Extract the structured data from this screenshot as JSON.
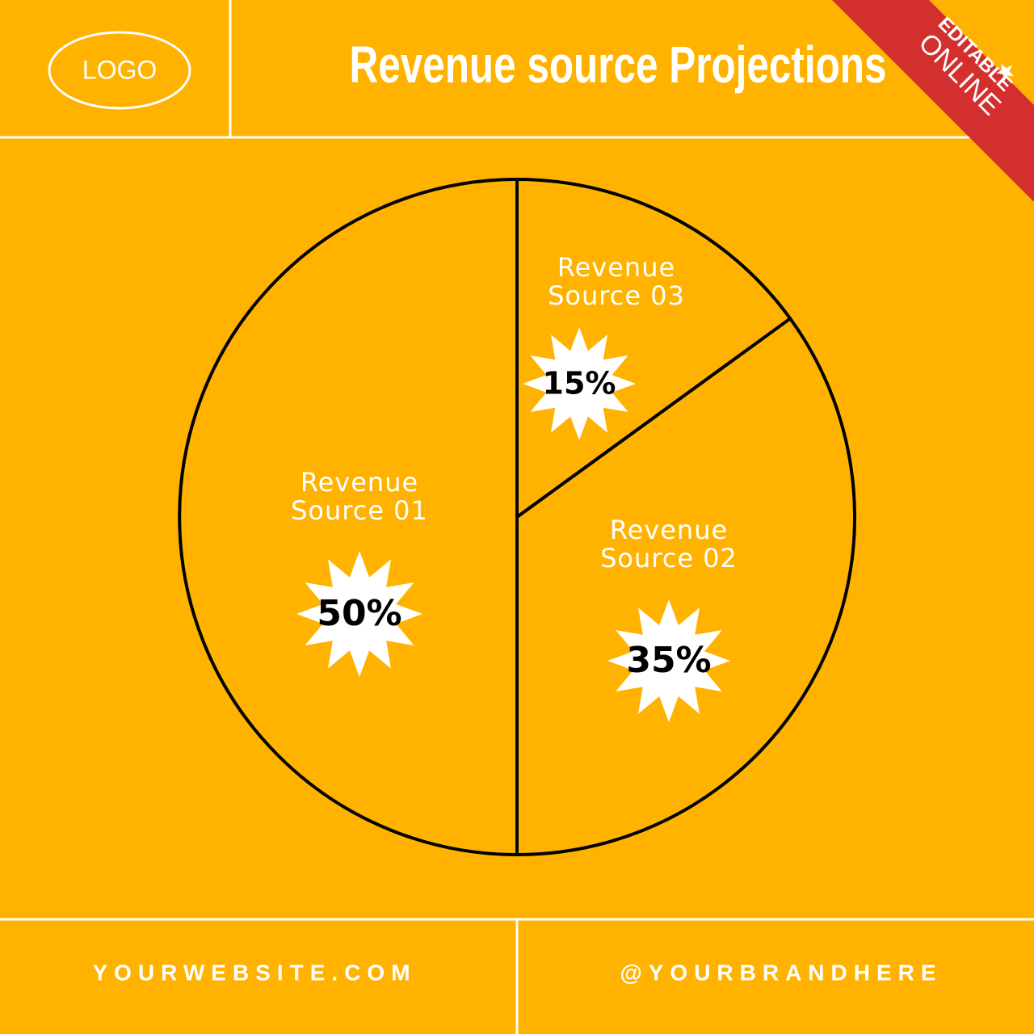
{
  "header": {
    "logo": "LOGO"
  },
  "badge": {
    "line1": "EDITABLE",
    "line2": "ONLINE"
  },
  "footer": {
    "website": "YOURWEBSITE.COM",
    "handle": "@YOURBRANDHERE"
  },
  "chart_data": {
    "type": "pie",
    "title": "Revenue source Projections",
    "categories": [
      "Revenue Source 01",
      "Revenue Source 02",
      "Revenue Source 03"
    ],
    "values": [
      50,
      35,
      15
    ],
    "value_labels": [
      "50%",
      "35%",
      "15%"
    ],
    "color": "#ffb300"
  }
}
